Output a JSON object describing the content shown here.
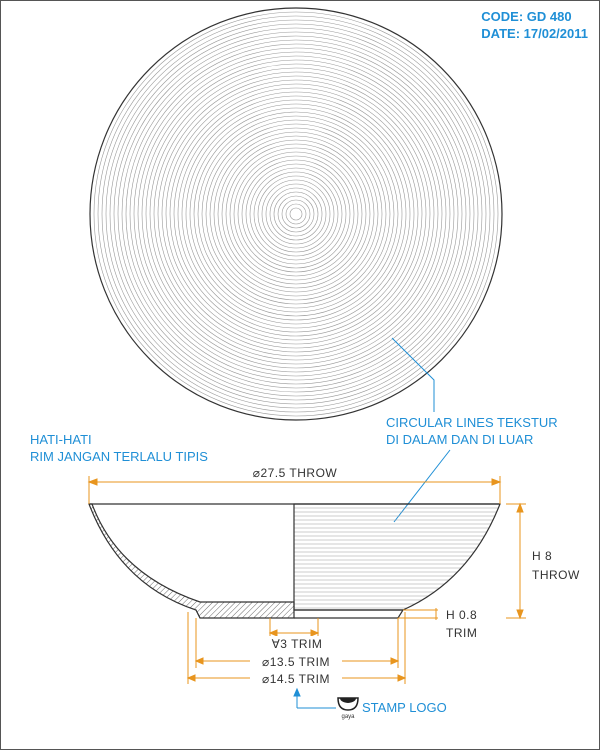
{
  "header": {
    "code": "CODE: GD 480",
    "date": "DATE: 17/02/2011"
  },
  "notes": {
    "texture_line1": "CIRCULAR LINES TEKSTUR",
    "texture_line2": "DI DALAM DAN DI LUAR",
    "warning_line1": "HATI-HATI",
    "warning_line2": "RIM JANGAN TERLALU TIPIS"
  },
  "dimensions": {
    "throw_diameter": "⌀27.5 THROW",
    "height_value": "H 8",
    "height_unit": "THROW",
    "foot_height_value": "H 0.8",
    "foot_height_unit": "TRIM",
    "inner_trim": "∀3 TRIM",
    "foot_inner_trim": "⌀13.5 TRIM",
    "foot_outer_trim": "⌀14.5 TRIM"
  },
  "stamp": {
    "label": "STAMP LOGO",
    "logo_text": "gaya"
  },
  "colors": {
    "accent": "#1f8fd6",
    "dimension": "#e8951e",
    "line": "#333333"
  }
}
